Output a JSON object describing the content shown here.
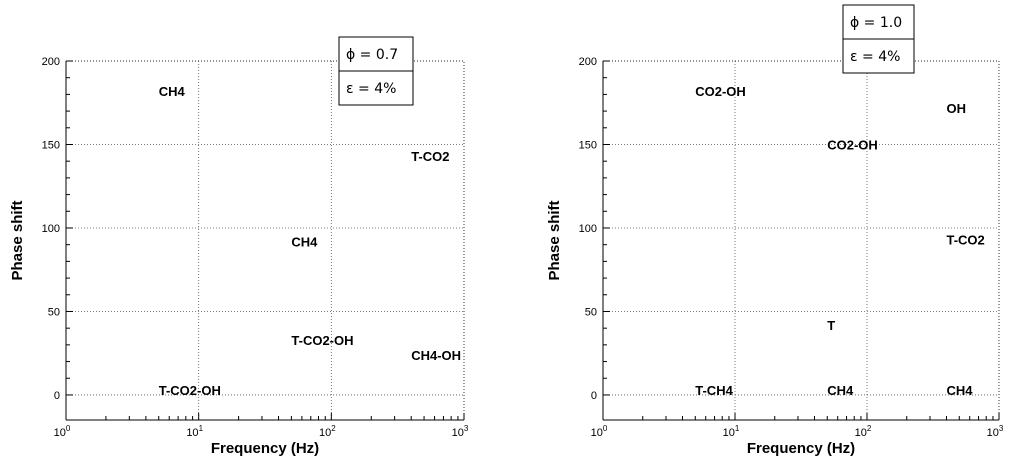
{
  "chart_data": [
    {
      "type": "scatter",
      "title": "",
      "xlabel": "Frequency (Hz)",
      "ylabel": "Phase shift",
      "xscale": "log",
      "xlim": [
        1,
        1000
      ],
      "ylim": [
        -15,
        200
      ],
      "xticks": [
        {
          "value": 1,
          "base": "10",
          "exp": "0"
        },
        {
          "value": 10,
          "base": "10",
          "exp": "1"
        },
        {
          "value": 100,
          "base": "10",
          "exp": "2"
        },
        {
          "value": 1000,
          "base": "10",
          "exp": "3"
        }
      ],
      "yticks": [
        0,
        50,
        100,
        150,
        200
      ],
      "grid": true,
      "legend": {
        "placement": "top-right",
        "lines": [
          "ϕ = 0.7",
          "ε = 4%"
        ]
      },
      "annotations": [
        {
          "text": "CH4",
          "x": 5,
          "y": 182
        },
        {
          "text": "T-CO2",
          "x": 400,
          "y": 143
        },
        {
          "text": "CH4",
          "x": 50,
          "y": 92
        },
        {
          "text": "T-CO2-OH",
          "x": 50,
          "y": 33
        },
        {
          "text": "CH4-OH",
          "x": 400,
          "y": 24
        },
        {
          "text": "T-CO2-OH",
          "x": 5,
          "y": 3
        }
      ]
    },
    {
      "type": "scatter",
      "title": "",
      "xlabel": "Frequency (Hz)",
      "ylabel": "Phase shift",
      "xscale": "log",
      "xlim": [
        1,
        1000
      ],
      "ylim": [
        -15,
        200
      ],
      "xticks": [
        {
          "value": 1,
          "base": "10",
          "exp": "0"
        },
        {
          "value": 10,
          "base": "10",
          "exp": "1"
        },
        {
          "value": 100,
          "base": "10",
          "exp": "2"
        },
        {
          "value": 1000,
          "base": "10",
          "exp": "3"
        }
      ],
      "yticks": [
        0,
        50,
        100,
        150,
        200
      ],
      "grid": true,
      "legend": {
        "placement": "top-right",
        "lines": [
          "ϕ = 1.0",
          "ε = 4%"
        ]
      },
      "annotations": [
        {
          "text": "CO2-OH",
          "x": 5,
          "y": 182
        },
        {
          "text": "OH",
          "x": 400,
          "y": 172
        },
        {
          "text": "CO2-OH",
          "x": 50,
          "y": 150
        },
        {
          "text": "T-CO2",
          "x": 400,
          "y": 93
        },
        {
          "text": "T",
          "x": 50,
          "y": 42
        },
        {
          "text": "T-CH4",
          "x": 5,
          "y": 3
        },
        {
          "text": "CH4",
          "x": 50,
          "y": 3
        },
        {
          "text": "CH4",
          "x": 400,
          "y": 3
        }
      ]
    }
  ]
}
